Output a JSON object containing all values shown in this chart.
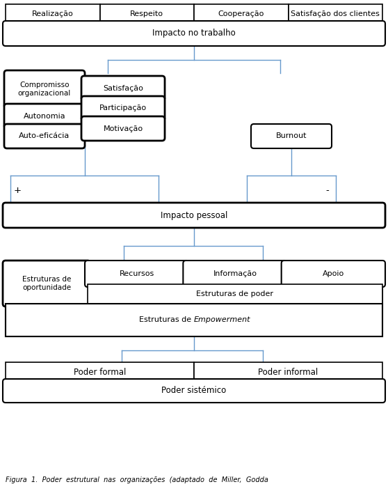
{
  "fig_width": 5.58,
  "fig_height": 7.02,
  "dpi": 100,
  "bg_color": "#ffffff",
  "box_color": "#000000",
  "line_color": "#6699cc",
  "font_size": 8.5,
  "caption": "Figura  1.  Poder  estrutural  nas  organizações  (adaptado  de  Miller,  Godda",
  "caption_fontsize": 7.0,
  "top4_labels": [
    "Realização",
    "Respeito",
    "Cooperação",
    "Satisfação dos clientes"
  ],
  "impacto_trabalho": "Impacto no trabalho",
  "left_col_labels": [
    "Compromisso\norganizacional",
    "Autonomia",
    "Auto-eficácia"
  ],
  "right_col_labels": [
    "Satisfação",
    "Participação",
    "Motivação"
  ],
  "burnout": "Burnout",
  "impacto_pessoal": "Impacto pessoal",
  "est_oport": "Estruturas de\noportunidade",
  "top_row_labels": [
    "Recursos",
    "Informação",
    "Apoio"
  ],
  "est_poder": "Estruturas de poder",
  "est_emp_prefix": "Estruturas de ",
  "est_emp_italic": "Empowerment",
  "poder_formal": "Poder formal",
  "poder_informal": "Poder informal",
  "poder_sistemico": "Poder sistémico",
  "plus_label": "+",
  "minus_label": "-"
}
